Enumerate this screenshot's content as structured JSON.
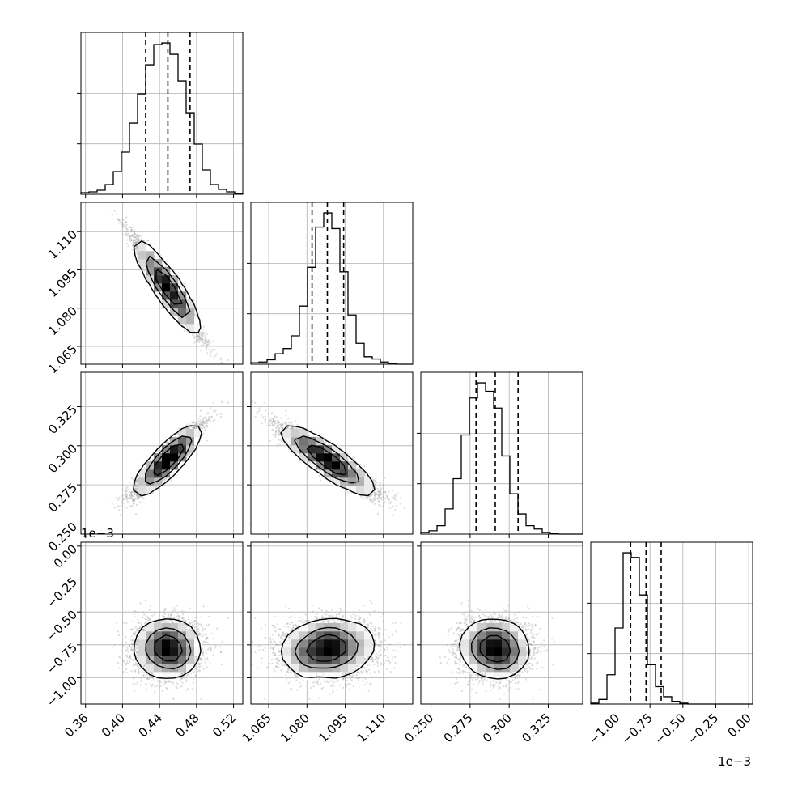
{
  "chart_data": {
    "type": "corner",
    "grid": true,
    "colors": {
      "line": "#000000",
      "scatter": "#9e9e9e",
      "grid": "#b0b0b0"
    },
    "parameters": [
      {
        "ticks": [
          0.36,
          0.4,
          0.44,
          0.48,
          0.52
        ],
        "tick_labels": [
          "0.36",
          "0.40",
          "0.44",
          "0.48",
          "0.52"
        ],
        "range": [
          0.355,
          0.53
        ],
        "quantiles": [
          0.425,
          0.449,
          0.473
        ]
      },
      {
        "ticks": [
          1.065,
          1.08,
          1.095,
          1.11
        ],
        "tick_labels": [
          "1.065",
          "1.080",
          "1.095",
          "1.110"
        ],
        "range": [
          1.058,
          1.1215
        ],
        "quantiles": [
          1.082,
          1.088,
          1.0944
        ]
      },
      {
        "ticks": [
          0.25,
          0.275,
          0.3,
          0.325
        ],
        "tick_labels": [
          "0.250",
          "0.275",
          "0.300",
          "0.325"
        ],
        "range": [
          0.2435,
          0.347
        ],
        "quantiles": [
          0.2788,
          0.2911,
          0.3057
        ]
      },
      {
        "ticks": [
          -1.0,
          -0.75,
          -0.5,
          -0.25,
          0.0
        ],
        "tick_labels": [
          "−1.00",
          "−0.75",
          "−0.50",
          "−0.25",
          "0.00"
        ],
        "range": [
          -1.2,
          0.03
        ],
        "quantiles": [
          -0.897,
          -0.78,
          -0.665
        ],
        "offset_label": "1e−3"
      }
    ],
    "histograms": [
      {
        "bin_start": 0.355,
        "bin_width": 0.00875,
        "counts": [
          2,
          3,
          5,
          12,
          28,
          52,
          88,
          124,
          160,
          185,
          187,
          173,
          140,
          100,
          62,
          30,
          12,
          6,
          3,
          1
        ]
      },
      {
        "bin_start": 1.058,
        "bin_width": 0.003175,
        "counts": [
          2,
          3,
          6,
          14,
          21,
          38,
          78,
          130,
          184,
          203,
          182,
          124,
          66,
          28,
          10,
          7,
          3,
          1,
          0,
          0
        ]
      },
      {
        "bin_start": 0.2435,
        "bin_width": 0.005175,
        "counts": [
          2,
          4,
          10,
          30,
          66,
          118,
          162,
          180,
          170,
          150,
          93,
          48,
          24,
          10,
          6,
          2,
          1,
          0,
          0,
          0
        ]
      },
      {
        "bin_start": -1.2,
        "bin_width": 0.0615,
        "counts": [
          1,
          5,
          32,
          83,
          165,
          160,
          119,
          43,
          19,
          8,
          3,
          1,
          0,
          0,
          0,
          0,
          0,
          0,
          0,
          0
        ]
      }
    ],
    "distribution": {
      "means": [
        0.449,
        1.088,
        0.291,
        -0.78
      ],
      "sds": [
        0.018,
        0.0095,
        0.011,
        0.11
      ],
      "correlations": [
        [
          1.0,
          -0.97,
          0.93,
          0.0
        ],
        [
          -0.97,
          1.0,
          -0.93,
          0.08
        ],
        [
          0.93,
          -0.93,
          1.0,
          -0.05
        ],
        [
          0.0,
          0.08,
          -0.05,
          1.0
        ]
      ]
    }
  }
}
